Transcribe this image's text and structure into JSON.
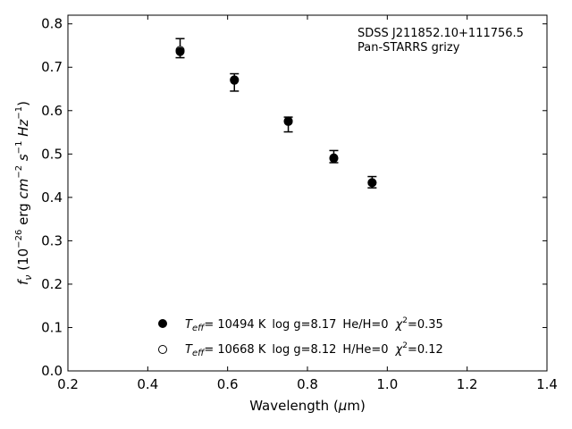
{
  "chart_data": {
    "type": "scatter",
    "title": "",
    "xlabel": "Wavelength (",
    "xlabel_symbol": "μ",
    "xlabel_suffix": "m)",
    "ylabel": {
      "symbol": "f",
      "sub": "ν",
      "open": " (10",
      "exp1": "−26",
      "unit1": " erg ",
      "cm": "cm",
      "exp2": "−2",
      "s": " s",
      "exp3": "−1",
      "hz": " Hz",
      "exp4": "−1",
      "close": ")"
    },
    "xlim": [
      0.2,
      1.4
    ],
    "ylim": [
      0.0,
      0.82
    ],
    "x_ticks": [
      "0.2",
      "0.4",
      "0.6",
      "0.8",
      "1.0",
      "1.2",
      "1.4"
    ],
    "y_ticks": [
      "0.0",
      "0.1",
      "0.2",
      "0.3",
      "0.4",
      "0.5",
      "0.6",
      "0.7",
      "0.8"
    ],
    "grid": false,
    "annotation": {
      "line1": "SDSS J211852.10+111756.5",
      "line2": "Pan-STARRS grizy"
    },
    "observed": [
      {
        "x": 0.481,
        "y": 0.744,
        "err": 0.022
      },
      {
        "x": 0.617,
        "y": 0.665,
        "err": 0.02
      },
      {
        "x": 0.752,
        "y": 0.568,
        "err": 0.017
      },
      {
        "x": 0.866,
        "y": 0.494,
        "err": 0.014
      },
      {
        "x": 0.962,
        "y": 0.435,
        "err": 0.013
      }
    ],
    "series": [
      {
        "marker": "filled",
        "x": [
          0.481,
          0.617,
          0.752,
          0.866,
          0.962
        ],
        "y": [
          0.736,
          0.67,
          0.575,
          0.49,
          0.434
        ],
        "legend": {
          "t": "T",
          "t_sub": "eff",
          "temp": "= 10494 K",
          "logg": "log g=8.17",
          "comp": "He/H=0",
          "chi": "χ",
          "chi_sup": "2",
          "chi_val": "=0.35"
        }
      },
      {
        "marker": "open",
        "x": [
          0.481,
          0.617,
          0.752,
          0.866,
          0.962
        ],
        "y": [
          0.739,
          0.671,
          0.576,
          0.491,
          0.434
        ],
        "legend": {
          "t": "T",
          "t_sub": "eff",
          "temp": "= 10668 K",
          "logg": "log g=8.12",
          "comp": "H/He=0",
          "chi": "χ",
          "chi_sup": "2",
          "chi_val": "=0.12"
        }
      }
    ],
    "legend_position": "bottom-center"
  }
}
